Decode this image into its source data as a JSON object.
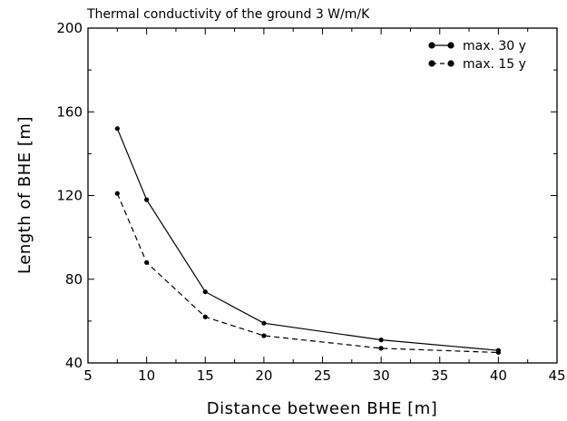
{
  "chart_data": {
    "type": "line",
    "title": "Thermal conductivity of the ground 3 W/m/K",
    "xlabel": "Distance between BHE [m]",
    "ylabel": "Length of BHE [m]",
    "xlim": [
      5,
      45
    ],
    "ylim": [
      40,
      200
    ],
    "xticks": [
      5,
      10,
      15,
      20,
      25,
      30,
      35,
      40,
      45
    ],
    "yticks": [
      40,
      80,
      120,
      160,
      200
    ],
    "grid": false,
    "legend_position": "top-right",
    "series": [
      {
        "name": "max. 30 y",
        "line_style": "solid",
        "color": "#000000",
        "x": [
          7.5,
          10,
          15,
          20,
          30,
          40
        ],
        "y": [
          152,
          118,
          74,
          59,
          51,
          46
        ]
      },
      {
        "name": "max. 15 y",
        "line_style": "dashed",
        "color": "#000000",
        "x": [
          7.5,
          10,
          15,
          20,
          30,
          40
        ],
        "y": [
          121,
          88,
          62,
          53,
          47,
          45
        ]
      }
    ]
  }
}
